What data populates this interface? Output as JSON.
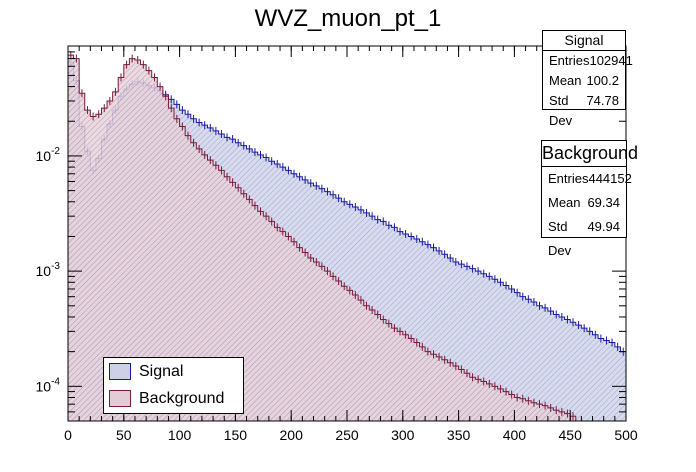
{
  "chart_data": {
    "type": "step-histogram",
    "title": "WVZ_muon_pt_1",
    "xlabel": "",
    "ylabel": "",
    "xlim": [
      0,
      500
    ],
    "ylim": [
      5e-05,
      0.09
    ],
    "yscale": "log",
    "x_ticks": [
      0,
      50,
      100,
      150,
      200,
      250,
      300,
      350,
      400,
      450,
      500
    ],
    "y_ticks": [
      {
        "value": 0.0001,
        "label": "10^-4"
      },
      {
        "value": 0.001,
        "label": "10^-3"
      },
      {
        "value": 0.01,
        "label": "10^-2"
      }
    ],
    "legend_position": "bottom-left",
    "series": [
      {
        "name": "Signal",
        "color": "#1a1aa0",
        "fill": "#cdd0e6",
        "points": [
          [
            0,
            0.065
          ],
          [
            5,
            0.045
          ],
          [
            10,
            0.018
          ],
          [
            15,
            0.011
          ],
          [
            20,
            0.0075
          ],
          [
            25,
            0.0095
          ],
          [
            30,
            0.014
          ],
          [
            35,
            0.019
          ],
          [
            40,
            0.025
          ],
          [
            45,
            0.033
          ],
          [
            50,
            0.038
          ],
          [
            55,
            0.042
          ],
          [
            60,
            0.044
          ],
          [
            65,
            0.043
          ],
          [
            70,
            0.041
          ],
          [
            75,
            0.039
          ],
          [
            80,
            0.037
          ],
          [
            85,
            0.034
          ],
          [
            90,
            0.031
          ],
          [
            95,
            0.028
          ],
          [
            100,
            0.025
          ],
          [
            105,
            0.023
          ],
          [
            110,
            0.021
          ],
          [
            115,
            0.0195
          ],
          [
            120,
            0.0185
          ],
          [
            125,
            0.0175
          ],
          [
            130,
            0.0165
          ],
          [
            135,
            0.0155
          ],
          [
            140,
            0.0145
          ],
          [
            145,
            0.014
          ],
          [
            150,
            0.013
          ],
          [
            155,
            0.0123
          ],
          [
            160,
            0.0115
          ],
          [
            165,
            0.0108
          ],
          [
            170,
            0.0102
          ],
          [
            175,
            0.0097
          ],
          [
            180,
            0.009
          ],
          [
            185,
            0.0085
          ],
          [
            190,
            0.008
          ],
          [
            195,
            0.0075
          ],
          [
            200,
            0.007
          ],
          [
            205,
            0.0066
          ],
          [
            210,
            0.0062
          ],
          [
            215,
            0.0058
          ],
          [
            220,
            0.0055
          ],
          [
            225,
            0.0052
          ],
          [
            230,
            0.0049
          ],
          [
            235,
            0.0046
          ],
          [
            240,
            0.0043
          ],
          [
            245,
            0.004
          ],
          [
            250,
            0.0038
          ],
          [
            255,
            0.0036
          ],
          [
            260,
            0.0034
          ],
          [
            265,
            0.0032
          ],
          [
            270,
            0.003
          ],
          [
            275,
            0.0028
          ],
          [
            280,
            0.0027
          ],
          [
            285,
            0.0025
          ],
          [
            290,
            0.0024
          ],
          [
            295,
            0.0022
          ],
          [
            300,
            0.0021
          ],
          [
            305,
            0.002
          ],
          [
            310,
            0.0019
          ],
          [
            315,
            0.0018
          ],
          [
            320,
            0.0017
          ],
          [
            325,
            0.0016
          ],
          [
            330,
            0.0015
          ],
          [
            335,
            0.0014
          ],
          [
            340,
            0.0013
          ],
          [
            345,
            0.0012
          ],
          [
            350,
            0.00115
          ],
          [
            355,
            0.0011
          ],
          [
            360,
            0.00105
          ],
          [
            365,
            0.001
          ],
          [
            370,
            0.00095
          ],
          [
            375,
            0.0009
          ],
          [
            380,
            0.00085
          ],
          [
            385,
            0.0008
          ],
          [
            390,
            0.00075
          ],
          [
            395,
            0.0007
          ],
          [
            400,
            0.00065
          ],
          [
            405,
            0.0006
          ],
          [
            410,
            0.00057
          ],
          [
            415,
            0.00054
          ],
          [
            420,
            0.0005
          ],
          [
            425,
            0.00048
          ],
          [
            430,
            0.00045
          ],
          [
            435,
            0.00042
          ],
          [
            440,
            0.0004
          ],
          [
            445,
            0.00038
          ],
          [
            450,
            0.00036
          ],
          [
            455,
            0.00034
          ],
          [
            460,
            0.00032
          ],
          [
            465,
            0.0003
          ],
          [
            470,
            0.00028
          ],
          [
            475,
            0.00026
          ],
          [
            480,
            0.00025
          ],
          [
            485,
            0.00024
          ],
          [
            490,
            0.00022
          ],
          [
            495,
            0.0002
          ]
        ]
      },
      {
        "name": "Background",
        "color": "#7a1a3a",
        "fill": "#e2cdd6",
        "points": [
          [
            0,
            0.075
          ],
          [
            5,
            0.07
          ],
          [
            10,
            0.035
          ],
          [
            15,
            0.025
          ],
          [
            20,
            0.022
          ],
          [
            25,
            0.023
          ],
          [
            30,
            0.026
          ],
          [
            35,
            0.03
          ],
          [
            40,
            0.036
          ],
          [
            45,
            0.048
          ],
          [
            50,
            0.062
          ],
          [
            55,
            0.07
          ],
          [
            60,
            0.068
          ],
          [
            65,
            0.062
          ],
          [
            70,
            0.055
          ],
          [
            75,
            0.048
          ],
          [
            80,
            0.04
          ],
          [
            85,
            0.033
          ],
          [
            90,
            0.026
          ],
          [
            95,
            0.021
          ],
          [
            100,
            0.018
          ],
          [
            105,
            0.015
          ],
          [
            110,
            0.013
          ],
          [
            115,
            0.0115
          ],
          [
            120,
            0.0102
          ],
          [
            125,
            0.0092
          ],
          [
            130,
            0.0083
          ],
          [
            135,
            0.0075
          ],
          [
            140,
            0.0066
          ],
          [
            145,
            0.0059
          ],
          [
            150,
            0.0053
          ],
          [
            155,
            0.0047
          ],
          [
            160,
            0.0042
          ],
          [
            165,
            0.0037
          ],
          [
            170,
            0.0033
          ],
          [
            175,
            0.003
          ],
          [
            180,
            0.0027
          ],
          [
            185,
            0.0024
          ],
          [
            190,
            0.0022
          ],
          [
            195,
            0.002
          ],
          [
            200,
            0.0018
          ],
          [
            205,
            0.0016
          ],
          [
            210,
            0.00145
          ],
          [
            215,
            0.0013
          ],
          [
            220,
            0.0012
          ],
          [
            225,
            0.0011
          ],
          [
            230,
            0.001
          ],
          [
            235,
            0.0009
          ],
          [
            240,
            0.00082
          ],
          [
            245,
            0.00074
          ],
          [
            250,
            0.00068
          ],
          [
            255,
            0.00062
          ],
          [
            260,
            0.00056
          ],
          [
            265,
            0.0005
          ],
          [
            270,
            0.00046
          ],
          [
            275,
            0.00042
          ],
          [
            280,
            0.00038
          ],
          [
            285,
            0.00035
          ],
          [
            290,
            0.00032
          ],
          [
            295,
            0.0003
          ],
          [
            300,
            0.00028
          ],
          [
            305,
            0.00026
          ],
          [
            310,
            0.00024
          ],
          [
            315,
            0.00022
          ],
          [
            320,
            0.0002
          ],
          [
            325,
            0.00019
          ],
          [
            330,
            0.00018
          ],
          [
            335,
            0.00017
          ],
          [
            340,
            0.00016
          ],
          [
            345,
            0.00015
          ],
          [
            350,
            0.00014
          ],
          [
            355,
            0.00013
          ],
          [
            360,
            0.00012
          ],
          [
            365,
            0.000115
          ],
          [
            370,
            0.00011
          ],
          [
            375,
            0.000105
          ],
          [
            380,
            0.0001
          ],
          [
            385,
            9.5e-05
          ],
          [
            390,
            9e-05
          ],
          [
            395,
            8.5e-05
          ],
          [
            400,
            8e-05
          ],
          [
            405,
            7.8e-05
          ],
          [
            410,
            7.5e-05
          ],
          [
            415,
            7.2e-05
          ],
          [
            420,
            7e-05
          ],
          [
            425,
            6.8e-05
          ],
          [
            430,
            6.5e-05
          ],
          [
            435,
            6.2e-05
          ],
          [
            440,
            6e-05
          ],
          [
            445,
            5.8e-05
          ],
          [
            450,
            5.5e-05
          ]
        ]
      }
    ],
    "stats": [
      {
        "title": "Signal",
        "entries_label": "Entries",
        "entries": "102941",
        "mean_label": "Mean",
        "mean": "100.2",
        "std_label": "Std Dev",
        "std": "74.78"
      },
      {
        "title": "Background",
        "entries_label": "Entries",
        "entries": "444152",
        "mean_label": "Mean",
        "mean": "69.34",
        "std_label": "Std Dev",
        "std": "49.94"
      }
    ]
  }
}
